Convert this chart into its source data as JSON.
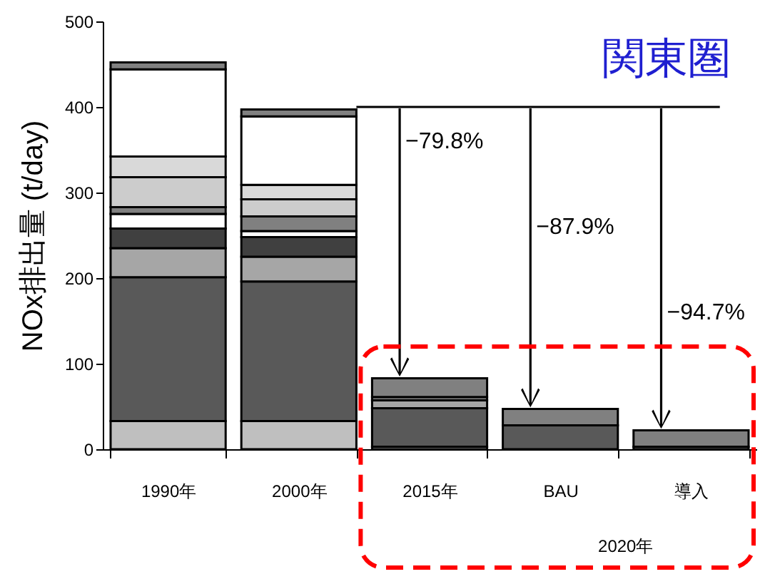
{
  "chart_data": {
    "type": "bar",
    "stacked": true,
    "ylabel": "NOx排出量 (t/day)",
    "categories": [
      "1990年",
      "2000年",
      "2015年",
      "BAU",
      "導入"
    ],
    "ylim": [
      0,
      500
    ],
    "yticks": [
      0,
      100,
      200,
      300,
      400,
      500
    ],
    "grid": false,
    "series": [
      {
        "color": "#bfbfbf",
        "values": [
          33,
          33,
          3,
          null,
          null
        ]
      },
      {
        "color": "#595959",
        "values": [
          168,
          163,
          45,
          28,
          null
        ]
      },
      {
        "color": "#a6a6a6",
        "values": [
          34,
          29,
          9,
          null,
          null
        ]
      },
      {
        "color": "#404040",
        "values": [
          23,
          23,
          null,
          null,
          null
        ]
      },
      {
        "color": "#ffffff",
        "values": [
          17,
          7,
          null,
          null,
          null
        ]
      },
      {
        "color": "#808080",
        "values": [
          8,
          17,
          4,
          null,
          3
        ]
      },
      {
        "color": "#cccccc",
        "values": [
          35,
          20,
          null,
          null,
          null
        ]
      },
      {
        "color": "#d9d9d9",
        "values": [
          24,
          17,
          null,
          null,
          null
        ]
      },
      {
        "color": "#ffffff",
        "values": [
          102,
          80,
          null,
          null,
          null
        ]
      },
      {
        "color": "#808080",
        "values": [
          8,
          8,
          22,
          19,
          19
        ]
      }
    ],
    "ref_lines": [
      {
        "axis": "y",
        "value": 400
      }
    ],
    "annotations": [
      "関東圏",
      "−79.8%",
      "−87.9%",
      "−94.7%",
      "2020年"
    ]
  }
}
